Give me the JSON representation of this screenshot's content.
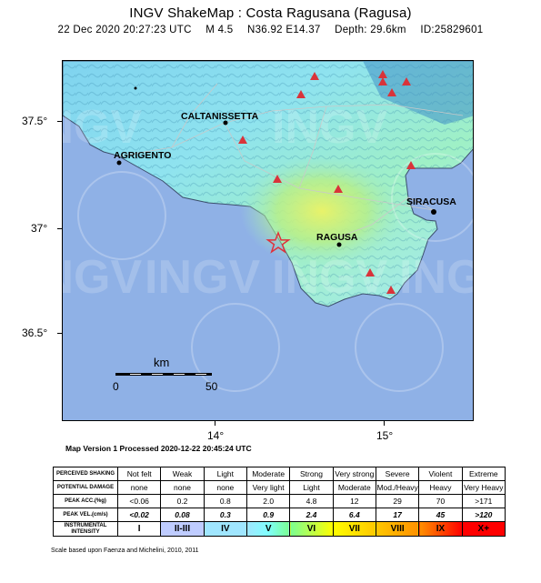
{
  "title": "INGV ShakeMap : Costa Ragusana (Ragusa)",
  "subtitle": {
    "datetime": "22 Dec 2020 20:27:23 UTC",
    "magnitude": "M 4.5",
    "coords": "N36.92 E14.37",
    "depth": "Depth: 29.6km",
    "id": "ID:25829601"
  },
  "axes": {
    "lat_labels": [
      "37.5°",
      "37°",
      "36.5°"
    ],
    "lon_labels": [
      "14°",
      "15°"
    ]
  },
  "map": {
    "watermark": "INGV",
    "cities": [
      "CALTANISSETTA",
      "AGRIGENTO",
      "SIRACUSA",
      "RAGUSA"
    ],
    "scale_unit": "km",
    "scale_values": [
      "0",
      "50"
    ],
    "colors": {
      "sea": "#8fb1e6",
      "epicenter": "#e0303a",
      "station": "#d9333a"
    }
  },
  "processed_note": "Map Version 1 Processed 2020-12-22 20:45:24 UTC",
  "legend": {
    "row_headers": [
      "PERCEIVED SHAKING",
      "POTENTIAL DAMAGE",
      "PEAK ACC.(%g)",
      "PEAK VEL.(cm/s)",
      "INSTRUMENTAL INTENSITY"
    ],
    "shaking": [
      "Not felt",
      "Weak",
      "Light",
      "Moderate",
      "Strong",
      "Very strong",
      "Severe",
      "Violent",
      "Extreme"
    ],
    "damage": [
      "none",
      "none",
      "none",
      "Very light",
      "Light",
      "Moderate",
      "Mod./Heavy",
      "Heavy",
      "Very Heavy"
    ],
    "pga": [
      "<0.06",
      "0.2",
      "0.8",
      "2.0",
      "4.8",
      "12",
      "29",
      "70",
      ">171"
    ],
    "pgv": [
      "<0.02",
      "0.08",
      "0.3",
      "0.9",
      "2.4",
      "6.4",
      "17",
      "45",
      ">120"
    ],
    "intensity": [
      "I",
      "II-III",
      "IV",
      "V",
      "VI",
      "VII",
      "VIII",
      "IX",
      "X+"
    ],
    "intensity_colors": [
      "#ffffff",
      "#bfccff",
      "#a0e6ff",
      "#80ffff",
      "#7aff93",
      "#ffff00",
      "#ffc800",
      "#ff9100",
      "#ff0000"
    ]
  },
  "footnote": "Scale based upon Faenza and Michelini, 2010, 2011"
}
